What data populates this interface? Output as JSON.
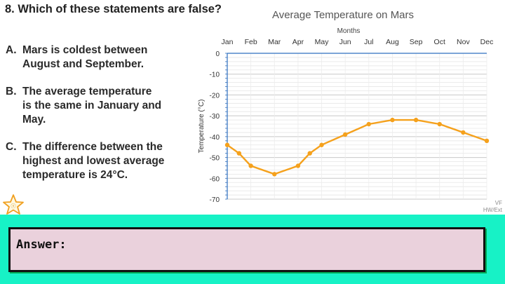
{
  "question": {
    "title": "8. Which of these statements are false?"
  },
  "options": [
    {
      "letter": "A.",
      "line1": "Mars is coldest between",
      "line2": "August and September.",
      "line3": ""
    },
    {
      "letter": "B.",
      "line1": "The average temperature",
      "line2": "is the same in January and",
      "line3": "May."
    },
    {
      "letter": "C.",
      "line1": "The difference between the",
      "line2": "highest and lowest average",
      "line3": "temperature is 24°C."
    }
  ],
  "footer": {
    "line1": "VF",
    "line2": "HW/Ext"
  },
  "answer": {
    "label": "Answer:"
  },
  "colors": {
    "line": "#f5a11c",
    "accent_band": "#17f2c6",
    "answer_box": "#ead1dc",
    "axis": "#2e6fbf"
  },
  "icons": {
    "star": "star-icon"
  },
  "chart_data": {
    "type": "line",
    "title": "Average Temperature on Mars",
    "xlabel": "Months",
    "ylabel": "Temperature (°C)",
    "categories": [
      "Jan",
      "Feb",
      "Mar",
      "Apr",
      "May",
      "Jun",
      "Jul",
      "Aug",
      "Sep",
      "Oct",
      "Nov",
      "Dec"
    ],
    "x": [
      1,
      1.5,
      2,
      3,
      4,
      4.5,
      5,
      6,
      7,
      8,
      9,
      10,
      11,
      12
    ],
    "values": [
      -44,
      -48,
      -54,
      -58,
      -54,
      -48,
      -44,
      -39,
      -34,
      -32,
      -32,
      -34,
      -38,
      -42
    ],
    "ylim": [
      -70,
      0
    ],
    "yticks": [
      0,
      -10,
      -20,
      -30,
      -40,
      -50,
      -60,
      -70
    ],
    "grid": true,
    "legend": "none"
  }
}
